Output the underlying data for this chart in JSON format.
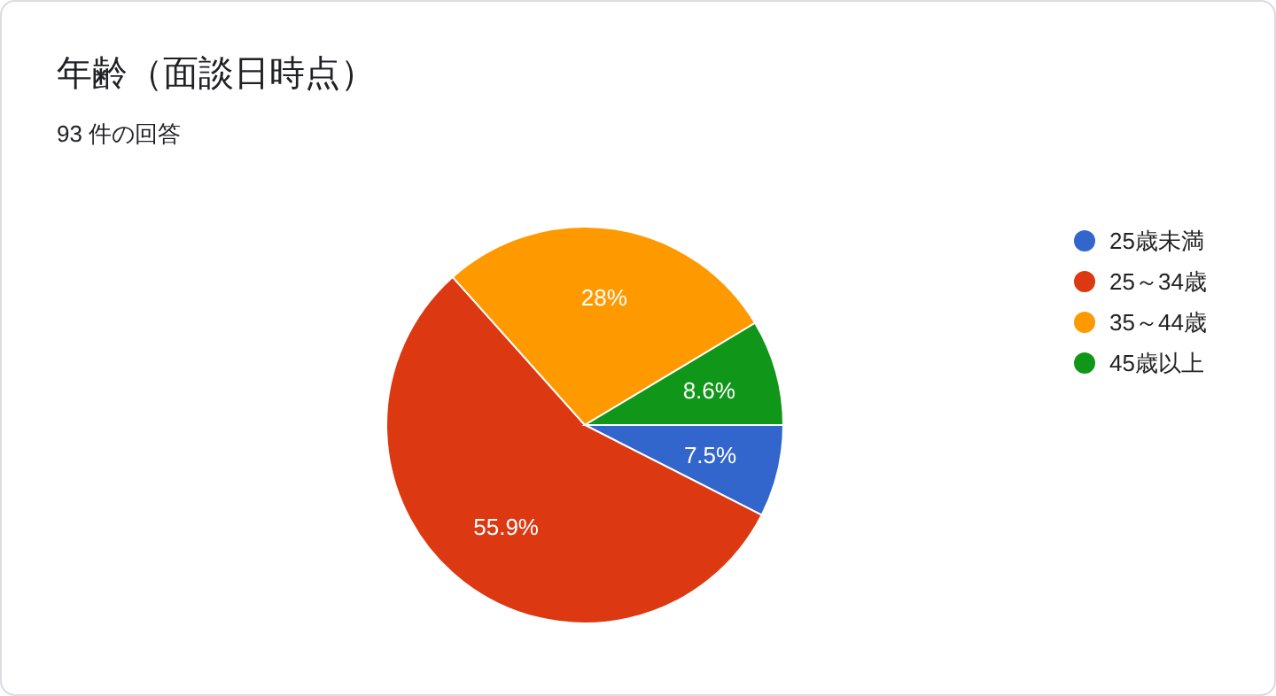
{
  "chart_data": {
    "type": "pie",
    "title": "年齢（面談日時点）",
    "subtitle": "93 件の回答",
    "categories": [
      "25歳未満",
      "25～34歳",
      "35～44歳",
      "45歳以上"
    ],
    "values": [
      7.5,
      55.9,
      28,
      8.6
    ],
    "colors": [
      "#3366cc",
      "#dc3912",
      "#ff9900",
      "#109618"
    ],
    "value_labels": [
      "7.5%",
      "55.9%",
      "28%",
      "8.6%"
    ],
    "legend": "top right"
  }
}
